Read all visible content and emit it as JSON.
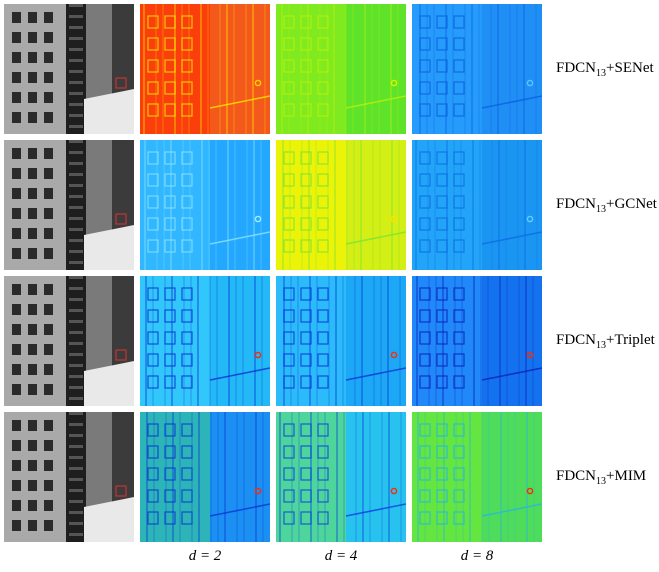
{
  "rows": [
    {
      "label_base": "FDCN",
      "label_sub": "13",
      "label_suffix": "+SENet",
      "maps": [
        {
          "bg": "#f4591c",
          "accent": "#ff2a00",
          "hi": "#ffd000",
          "lines": "#ffe600"
        },
        {
          "bg": "#5ee32a",
          "accent": "#9cf018",
          "hi": "#d7f500",
          "lines": "#b8f10a"
        },
        {
          "bg": "#1f8ff5",
          "accent": "#2aa6ff",
          "hi": "#59c7ff",
          "lines": "#0b5fe0"
        }
      ]
    },
    {
      "label_base": "FDCN",
      "label_sub": "13",
      "label_suffix": "+GCNet",
      "maps": [
        {
          "bg": "#24a7ff",
          "accent": "#3cc4ff",
          "hi": "#9ff0ff",
          "lines": "#8be4ff"
        },
        {
          "bg": "#d3ef15",
          "accent": "#fff500",
          "hi": "#ffe000",
          "lines": "#7be235"
        },
        {
          "bg": "#1a95f2",
          "accent": "#2ab0ff",
          "hi": "#5fd0ff",
          "lines": "#0c6be2"
        }
      ]
    },
    {
      "label_base": "FDCN",
      "label_sub": "13",
      "label_suffix": "+Triplet",
      "maps": [
        {
          "bg": "#22b9f6",
          "accent": "#3fd4ff",
          "hi": "#ff2a00",
          "lines": "#0a2fd6"
        },
        {
          "bg": "#1ca8f4",
          "accent": "#38c8ff",
          "hi": "#ff2a00",
          "lines": "#0a35d8"
        },
        {
          "bg": "#1572ef",
          "accent": "#2a9aff",
          "hi": "#ff2a00",
          "lines": "#0a1fbd"
        }
      ]
    },
    {
      "label_base": "FDCN",
      "label_sub": "13",
      "label_suffix": "+MIM",
      "maps": [
        {
          "bg": "#1b8ff2",
          "accent": "#3bd38a",
          "hi": "#ff2a00",
          "lines": "#0a35d2"
        },
        {
          "bg": "#27c2ee",
          "accent": "#6fe55a",
          "hi": "#ff2a00",
          "lines": "#0a3fe0"
        },
        {
          "bg": "#4fdc5a",
          "accent": "#76ec2b",
          "hi": "#ff2a00",
          "lines": "#27b4e6"
        }
      ]
    }
  ],
  "columns": [
    {
      "label": "d = 2"
    },
    {
      "label": "d = 4"
    },
    {
      "label": "d = 8"
    }
  ],
  "colors": {
    "photo_bg": "#3b3b3b",
    "photo_wall": "#a9a9a9",
    "photo_light": "#e9e9e9",
    "roi_box": "#e03030"
  }
}
